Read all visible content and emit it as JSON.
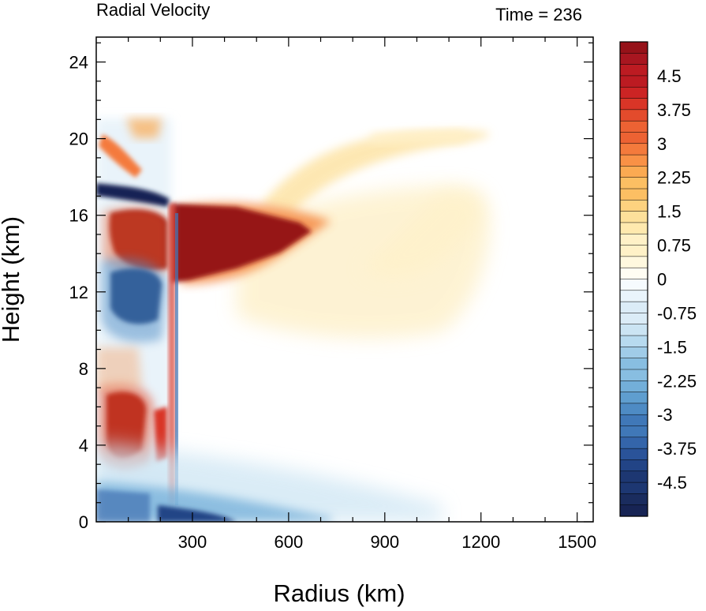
{
  "chart_data": {
    "type": "heatmap",
    "title": "Radial Velocity",
    "subtitle": "Time = 236",
    "xlabel": "Radius (km)",
    "ylabel": "Height (km)",
    "xlim": [
      0,
      1550
    ],
    "ylim": [
      0,
      25.3
    ],
    "x_ticks": [
      300,
      600,
      900,
      1200,
      1500
    ],
    "y_ticks": [
      0,
      4,
      8,
      12,
      16,
      20,
      24
    ],
    "x_tick_labels": [
      "300",
      "600",
      "900",
      "1200",
      "1500"
    ],
    "y_tick_labels": [
      "0",
      "4",
      "8",
      "12",
      "16",
      "20",
      "24"
    ],
    "colorbar": {
      "min": -5.25,
      "max": 5.25,
      "step": 0.25,
      "tick_values": [
        4.5,
        3.75,
        3,
        2.25,
        1.5,
        0.75,
        0,
        -0.75,
        -1.5,
        -2.25,
        -3,
        -3.75,
        -4.5
      ],
      "tick_labels": [
        "4.5",
        "3.75",
        "3",
        "2.25",
        "1.5",
        "0.75",
        "0",
        "-0.75",
        "-1.5",
        "-2.25",
        "-3",
        "-3.75",
        "-4.5"
      ],
      "colors_positive": [
        "#fffdf3",
        "#fff8df",
        "#fff1c7",
        "#ffe9ae",
        "#fde09a",
        "#fdd27f",
        "#fcbf63",
        "#fbaa52",
        "#f99146",
        "#f47a3c",
        "#ec6233",
        "#e34b2c",
        "#d93527",
        "#cc2424",
        "#bc1b22",
        "#a81620",
        "#961219"
      ],
      "colors_negative": [
        "#f6fbfe",
        "#e9f4fb",
        "#dbecf7",
        "#cbe4f3",
        "#b7daef",
        "#a0cce8",
        "#88bee1",
        "#73afd9",
        "#5f9ecf",
        "#4e8bc4",
        "#4078b8",
        "#3465aa",
        "#2a5399",
        "#224486",
        "#1d3772",
        "#1a2c5e",
        "#172454"
      ]
    },
    "features": [
      {
        "name": "upper-outflow-core",
        "value": 5.0,
        "x_range": [
          230,
          640
        ],
        "z_range": [
          12.5,
          16.5
        ]
      },
      {
        "name": "outflow-halo",
        "value": 1.2,
        "x_range": [
          300,
          1000
        ],
        "z_range": [
          10,
          17
        ]
      },
      {
        "name": "outflow-upper-branch",
        "value": 1.0,
        "x_range": [
          560,
          1160
        ],
        "z_range": [
          16,
          20.5
        ]
      },
      {
        "name": "eyewall-upper-inflow",
        "value": -5.0,
        "x_range": [
          30,
          230
        ],
        "z_range": [
          16,
          17
        ]
      },
      {
        "name": "eye-outflow-pocket",
        "value": 5.0,
        "x_range": [
          60,
          230
        ],
        "z_range": [
          13.5,
          16
        ]
      },
      {
        "name": "mid-level-inflow",
        "value": -5.0,
        "x_range": [
          50,
          200
        ],
        "z_range": [
          10.5,
          13
        ]
      },
      {
        "name": "low-level-outflow-pocket",
        "value": 5.0,
        "x_range": [
          40,
          200
        ],
        "z_range": [
          3.5,
          7
        ]
      },
      {
        "name": "boundary-layer-inflow",
        "value": -2.5,
        "x_range": [
          0,
          1000
        ],
        "z_range": [
          0,
          3
        ]
      },
      {
        "name": "eyewall-updraft-edge",
        "value": 4.0,
        "x_range": [
          215,
          240
        ],
        "z_range": [
          2,
          17
        ]
      }
    ]
  }
}
